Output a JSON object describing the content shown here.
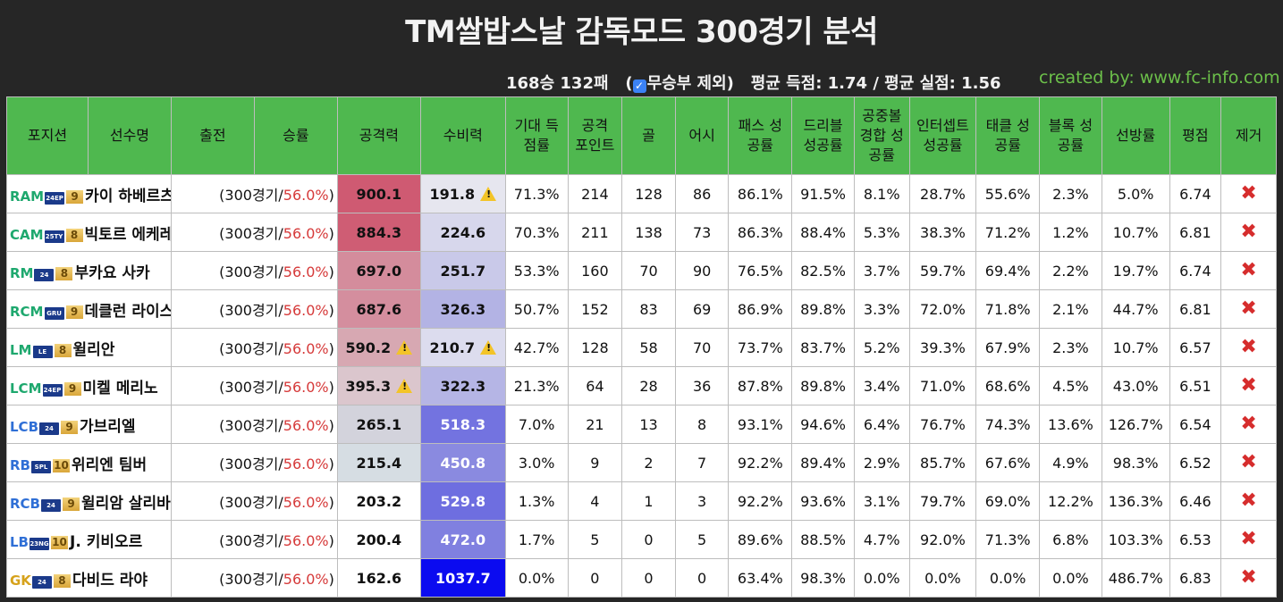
{
  "title": "TM쌀밥스날 감독모드 300경기 분석",
  "summary": {
    "record": "168승 132패",
    "checkbox_label": "무승부 제외",
    "checked": true,
    "avg": "평균 득점: 1.74 / 평균 실점: 1.56"
  },
  "credit": "created by: www.fc-info.com",
  "colors": {
    "header_bg": "#4fb84f",
    "pos_green": "#1ea86e",
    "pos_blue": "#2f6fd6",
    "pos_gold": "#d6a21b",
    "rate_red": "#d63a3a",
    "remove_red": "#d62d2d"
  },
  "table": {
    "headers": [
      "포지션",
      "선수명",
      "출전",
      "승률",
      "공격력",
      "수비력",
      "기대 득점률",
      "공격 포인트",
      "골",
      "어시",
      "패스 성공률",
      "드리블 성공률",
      "공중볼 경합 성공률",
      "인터셉트 성공률",
      "태클 성공률",
      "블록 성공률",
      "선방률",
      "평점",
      "제거"
    ],
    "rows": [
      {
        "pos": "RAM",
        "pos_color": "#1ea86e",
        "season": "24EP",
        "grade": "9",
        "name": "카이 하베르츠",
        "apps": "(300경기/",
        "winrate": "56.0%",
        "suffix": ")",
        "atk": "900.1",
        "atk_warn": false,
        "def": "191.8",
        "def_warn": true,
        "xg": "71.3%",
        "ap": "214",
        "goals": "128",
        "assists": "86",
        "pass": "86.1%",
        "dribble": "91.5%",
        "aerial": "8.1%",
        "intercept": "28.7%",
        "tackle": "55.6%",
        "block": "2.3%",
        "save": "5.0%",
        "rating": "6.74",
        "atk_bg": "#cf5a72",
        "def_bg": "#e6e6ef",
        "def_fg": "#111"
      },
      {
        "pos": "CAM",
        "pos_color": "#1ea86e",
        "season": "25TY",
        "grade": "8",
        "name": "빅토르 에케레스",
        "apps": "(300경기/",
        "winrate": "56.0%",
        "suffix": ")",
        "atk": "884.3",
        "atk_warn": false,
        "def": "224.6",
        "def_warn": false,
        "xg": "70.3%",
        "ap": "211",
        "goals": "138",
        "assists": "73",
        "pass": "86.3%",
        "dribble": "88.4%",
        "aerial": "5.3%",
        "intercept": "38.3%",
        "tackle": "71.2%",
        "block": "1.2%",
        "save": "10.7%",
        "rating": "6.81",
        "atk_bg": "#cf5d74",
        "def_bg": "#d7d7ec",
        "def_fg": "#111"
      },
      {
        "pos": "RM",
        "pos_color": "#1ea86e",
        "season": "24",
        "grade": "8",
        "name": "부카요 사카",
        "apps": "(300경기/",
        "winrate": "56.0%",
        "suffix": ")",
        "atk": "697.0",
        "atk_warn": false,
        "def": "251.7",
        "def_warn": false,
        "xg": "53.3%",
        "ap": "160",
        "goals": "70",
        "assists": "90",
        "pass": "76.5%",
        "dribble": "82.5%",
        "aerial": "3.7%",
        "intercept": "59.7%",
        "tackle": "69.4%",
        "block": "2.2%",
        "save": "19.7%",
        "rating": "6.74",
        "atk_bg": "#d48c9c",
        "def_bg": "#c9c9e9",
        "def_fg": "#111"
      },
      {
        "pos": "RCM",
        "pos_color": "#1ea86e",
        "season": "GRU",
        "grade": "9",
        "name": "데클런 라이스",
        "apps": "(300경기/",
        "winrate": "56.0%",
        "suffix": ")",
        "atk": "687.6",
        "atk_warn": false,
        "def": "326.3",
        "def_warn": false,
        "xg": "50.7%",
        "ap": "152",
        "goals": "83",
        "assists": "69",
        "pass": "86.9%",
        "dribble": "89.8%",
        "aerial": "3.3%",
        "intercept": "72.0%",
        "tackle": "71.8%",
        "block": "2.1%",
        "save": "44.7%",
        "rating": "6.81",
        "atk_bg": "#d48e9e",
        "def_bg": "#b3b3e4",
        "def_fg": "#111"
      },
      {
        "pos": "LM",
        "pos_color": "#1ea86e",
        "season": "LE",
        "grade": "8",
        "name": "윌리안",
        "apps": "(300경기/",
        "winrate": "56.0%",
        "suffix": ")",
        "atk": "590.2",
        "atk_warn": true,
        "def": "210.7",
        "def_warn": true,
        "xg": "42.7%",
        "ap": "128",
        "goals": "58",
        "assists": "70",
        "pass": "73.7%",
        "dribble": "83.7%",
        "aerial": "5.2%",
        "intercept": "39.3%",
        "tackle": "67.9%",
        "block": "2.3%",
        "save": "10.7%",
        "rating": "6.57",
        "atk_bg": "#d7a8b2",
        "def_bg": "#dcdcee",
        "def_fg": "#111"
      },
      {
        "pos": "LCM",
        "pos_color": "#1ea86e",
        "season": "24EP",
        "grade": "9",
        "name": "미켈 메리노",
        "apps": "(300경기/",
        "winrate": "56.0%",
        "suffix": ")",
        "atk": "395.3",
        "atk_warn": true,
        "def": "322.3",
        "def_warn": false,
        "xg": "21.3%",
        "ap": "64",
        "goals": "28",
        "assists": "36",
        "pass": "87.8%",
        "dribble": "89.8%",
        "aerial": "3.4%",
        "intercept": "71.0%",
        "tackle": "68.6%",
        "block": "4.5%",
        "save": "43.0%",
        "rating": "6.51",
        "atk_bg": "#dbc6cd",
        "def_bg": "#b5b5e5",
        "def_fg": "#111"
      },
      {
        "pos": "LCB",
        "pos_color": "#2f6fd6",
        "season": "24",
        "grade": "9",
        "name": "가브리엘",
        "apps": "(300경기/",
        "winrate": "56.0%",
        "suffix": ")",
        "atk": "265.1",
        "atk_warn": false,
        "def": "518.3",
        "def_warn": false,
        "xg": "7.0%",
        "ap": "21",
        "goals": "13",
        "assists": "8",
        "pass": "93.1%",
        "dribble": "94.6%",
        "aerial": "6.4%",
        "intercept": "76.7%",
        "tackle": "74.3%",
        "block": "13.6%",
        "save": "126.7%",
        "rating": "6.54",
        "atk_bg": "#d3d3dc",
        "def_bg": "#7373e0",
        "def_fg": "#fff"
      },
      {
        "pos": "RB",
        "pos_color": "#2f6fd6",
        "season": "SPL",
        "grade": "10",
        "name": "위리엔 팀버",
        "apps": "(300경기/",
        "winrate": "56.0%",
        "suffix": ")",
        "atk": "215.4",
        "atk_warn": false,
        "def": "450.8",
        "def_warn": false,
        "xg": "3.0%",
        "ap": "9",
        "goals": "2",
        "assists": "7",
        "pass": "92.2%",
        "dribble": "89.4%",
        "aerial": "2.9%",
        "intercept": "85.7%",
        "tackle": "67.6%",
        "block": "4.9%",
        "save": "98.3%",
        "rating": "6.52",
        "atk_bg": "#d6dde3",
        "def_bg": "#8a8ae0",
        "def_fg": "#fff"
      },
      {
        "pos": "RCB",
        "pos_color": "#2f6fd6",
        "season": "24",
        "grade": "9",
        "name": "윌리암 살리바",
        "apps": "(300경기/",
        "winrate": "56.0%",
        "suffix": ")",
        "atk": "203.2",
        "atk_warn": false,
        "def": "529.8",
        "def_warn": false,
        "xg": "1.3%",
        "ap": "4",
        "goals": "1",
        "assists": "3",
        "pass": "92.2%",
        "dribble": "93.6%",
        "aerial": "3.1%",
        "intercept": "79.7%",
        "tackle": "69.0%",
        "block": "12.2%",
        "save": "136.3%",
        "rating": "6.46",
        "atk_bg": "#ffffff",
        "def_bg": "#6e6ee0",
        "def_fg": "#fff"
      },
      {
        "pos": "LB",
        "pos_color": "#2f6fd6",
        "season": "23NG",
        "grade": "10",
        "name": "J. 키비오르",
        "apps": "(300경기/",
        "winrate": "56.0%",
        "suffix": ")",
        "atk": "200.4",
        "atk_warn": false,
        "def": "472.0",
        "def_warn": false,
        "xg": "1.7%",
        "ap": "5",
        "goals": "0",
        "assists": "5",
        "pass": "89.6%",
        "dribble": "88.5%",
        "aerial": "4.7%",
        "intercept": "92.0%",
        "tackle": "71.3%",
        "block": "6.8%",
        "save": "103.3%",
        "rating": "6.53",
        "atk_bg": "#ffffff",
        "def_bg": "#8080e0",
        "def_fg": "#fff"
      },
      {
        "pos": "GK",
        "pos_color": "#d6a21b",
        "season": "24",
        "grade": "8",
        "name": "다비드 라야",
        "apps": "(300경기/",
        "winrate": "56.0%",
        "suffix": ")",
        "atk": "162.6",
        "atk_warn": false,
        "def": "1037.7",
        "def_warn": false,
        "xg": "0.0%",
        "ap": "0",
        "goals": "0",
        "assists": "0",
        "pass": "63.4%",
        "dribble": "98.3%",
        "aerial": "0.0%",
        "intercept": "0.0%",
        "tackle": "0.0%",
        "block": "0.0%",
        "save": "486.7%",
        "rating": "6.83",
        "atk_bg": "#ffffff",
        "def_bg": "#0b0bf0",
        "def_fg": "#fff"
      }
    ],
    "remove_icon": "close-x-icon",
    "warn_icon": "warning-triangle-icon"
  }
}
